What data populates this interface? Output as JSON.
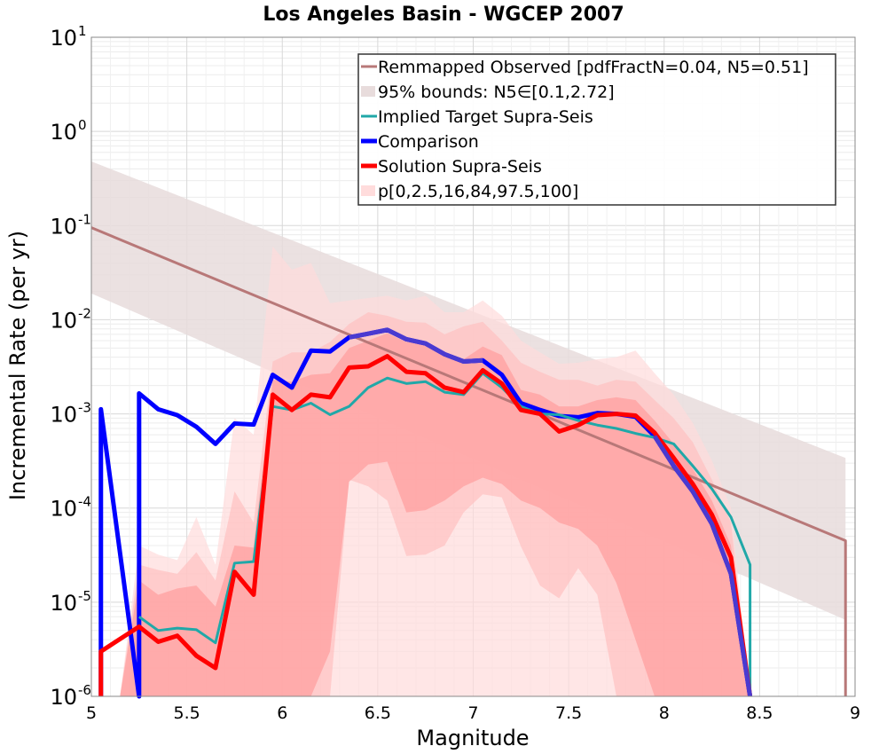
{
  "chart_data": {
    "type": "line",
    "title": "Los Angeles Basin - WGCEP 2007",
    "xlabel": "Magnitude",
    "ylabel": "Incremental Rate (per yr)",
    "xlim": [
      5,
      9
    ],
    "ylim": [
      1e-06,
      10
    ],
    "yscale": "log",
    "grid": true,
    "legend_position": "top-right",
    "xticks": [
      "5",
      "5.5",
      "6",
      "6.5",
      "7",
      "7.5",
      "8",
      "8.5",
      "9"
    ],
    "yticks": [
      {
        "base": "10",
        "exp": "1"
      },
      {
        "base": "10",
        "exp": "0"
      },
      {
        "base": "10",
        "exp": "-1"
      },
      {
        "base": "10",
        "exp": "-2"
      },
      {
        "base": "10",
        "exp": "-3"
      },
      {
        "base": "10",
        "exp": "-4"
      },
      {
        "base": "10",
        "exp": "-5"
      },
      {
        "base": "10",
        "exp": "-6"
      }
    ],
    "colors": {
      "observed": "#b87878",
      "bounds": "#e8dcdc",
      "implied": "#20a8a8",
      "comparison": "#0000ff",
      "solution": "#ff0000",
      "pctl_outer": "#ffdcdc",
      "pctl_mid": "#ffc0c0",
      "pctl_inner": "#ff9c9c",
      "overlap": "#4a3ad0",
      "overlap_green": "#4a7878"
    },
    "legend": [
      {
        "label": "Remmapped Observed [pdfFractN=0.04, N5=0.51]",
        "kind": "line",
        "color": "#b87878",
        "width": 3
      },
      {
        "label": "95% bounds: N5∈[0.1,2.72]",
        "kind": "patch",
        "color": "#e8dcdc"
      },
      {
        "label": "Implied Target Supra-Seis",
        "kind": "line",
        "color": "#20a8a8",
        "width": 3
      },
      {
        "label": "Comparison",
        "kind": "line",
        "color": "#0000ff",
        "width": 5
      },
      {
        "label": "Solution Supra-Seis",
        "kind": "line",
        "color": "#ff0000",
        "width": 5
      },
      {
        "label": "p[0,2.5,16,84,97.5,100]",
        "kind": "patch",
        "color": "#ffdcdc"
      }
    ],
    "remapped_observed": {
      "x": [
        5.0,
        8.95,
        8.95
      ],
      "y": [
        0.095,
        4.5e-05,
        1e-06
      ]
    },
    "bounds_95": {
      "x": [
        5.0,
        8.95
      ],
      "upper": [
        0.48,
        0.00034
      ],
      "lower": [
        0.019,
        6.5e-06
      ]
    },
    "comparison": {
      "x": [
        5.05,
        5.05,
        5.25,
        5.25,
        5.35,
        5.45,
        5.55,
        5.65,
        5.75,
        5.85,
        5.95,
        6.05,
        6.15,
        6.25,
        6.35,
        6.45,
        6.55,
        6.65,
        6.75,
        6.85,
        6.95,
        7.05,
        7.15,
        7.25,
        7.35,
        7.45,
        7.55,
        7.65,
        7.75,
        7.85,
        7.95,
        8.05,
        8.15,
        8.25,
        8.35,
        8.45
      ],
      "y": [
        1e-06,
        0.00112,
        1e-06,
        0.00165,
        0.00112,
        0.00097,
        0.00073,
        0.00048,
        0.00079,
        0.00077,
        0.0026,
        0.0019,
        0.0047,
        0.0046,
        0.0065,
        0.0071,
        0.0078,
        0.0062,
        0.0056,
        0.0043,
        0.0036,
        0.0037,
        0.0026,
        0.0013,
        0.0011,
        0.00095,
        0.00092,
        0.00102,
        0.001,
        0.00093,
        0.00058,
        0.00028,
        0.00015,
        6.8e-05,
        2e-05,
        1e-06
      ]
    },
    "solution": {
      "x": [
        5.05,
        5.05,
        5.25,
        5.35,
        5.45,
        5.55,
        5.65,
        5.75,
        5.85,
        5.95,
        6.05,
        6.15,
        6.25,
        6.35,
        6.45,
        6.55,
        6.65,
        6.75,
        6.85,
        6.95,
        7.05,
        7.15,
        7.25,
        7.35,
        7.45,
        7.55,
        7.65,
        7.75,
        7.85,
        7.95,
        8.05,
        8.15,
        8.25,
        8.35,
        8.45
      ],
      "y": [
        1e-06,
        3e-06,
        5.5e-06,
        3.8e-06,
        4.4e-06,
        2.7e-06,
        2e-06,
        2.1e-05,
        1.2e-05,
        0.0016,
        0.0011,
        0.0016,
        0.0015,
        0.0031,
        0.0032,
        0.0041,
        0.0028,
        0.0027,
        0.0019,
        0.0017,
        0.0029,
        0.0021,
        0.0011,
        0.001,
        0.00065,
        0.00076,
        0.00097,
        0.001,
        0.00096,
        0.00063,
        0.00034,
        0.00018,
        8.5e-05,
        3e-05,
        1e-06
      ]
    },
    "implied_target": {
      "x": [
        5.25,
        5.35,
        5.45,
        5.55,
        5.65,
        5.75,
        5.85,
        5.95,
        6.05,
        6.15,
        6.25,
        6.35,
        6.45,
        6.55,
        6.65,
        6.75,
        6.85,
        6.95,
        7.05,
        7.15,
        7.25,
        7.35,
        7.45,
        7.55,
        7.65,
        7.75,
        7.85,
        7.95,
        8.05,
        8.15,
        8.25,
        8.35,
        8.45,
        8.45
      ],
      "y": [
        7e-06,
        5e-06,
        5.3e-06,
        5.1e-06,
        3.7e-06,
        2.6e-05,
        2.7e-05,
        0.0012,
        0.0011,
        0.0013,
        0.00098,
        0.0012,
        0.0019,
        0.0024,
        0.0021,
        0.0022,
        0.0017,
        0.0016,
        0.0027,
        0.0019,
        0.0012,
        0.001,
        0.00098,
        0.00085,
        0.00076,
        0.0007,
        0.00062,
        0.00056,
        0.00048,
        0.00028,
        0.00016,
        8e-05,
        2.5e-05,
        1e-06
      ]
    },
    "percentiles": {
      "x": [
        5.05,
        5.15,
        5.25,
        5.35,
        5.45,
        5.55,
        5.65,
        5.75,
        5.85,
        5.95,
        6.05,
        6.15,
        6.25,
        6.35,
        6.45,
        6.55,
        6.65,
        6.75,
        6.85,
        6.95,
        7.05,
        7.15,
        7.25,
        7.35,
        7.45,
        7.55,
        7.65,
        7.75,
        7.85,
        7.95,
        8.05,
        8.15,
        8.25,
        8.35,
        8.45
      ],
      "p0": [
        1e-06,
        1e-06,
        1e-06,
        1e-06,
        1e-06,
        1e-06,
        1e-06,
        1e-06,
        1e-06,
        1e-06,
        1e-06,
        1e-06,
        1e-06,
        1e-06,
        1e-06,
        1e-06,
        1e-06,
        1e-06,
        1e-06,
        1e-06,
        1e-06,
        1e-06,
        1e-06,
        1e-06,
        1e-06,
        1e-06,
        1e-06,
        1e-06,
        1e-06,
        1e-06,
        1e-06,
        1e-06,
        1e-06,
        1e-06,
        1e-06
      ],
      "p2_5": [
        1e-06,
        1e-06,
        1e-06,
        1e-06,
        1e-06,
        1e-06,
        1e-06,
        1e-06,
        1e-06,
        1e-06,
        1e-06,
        1e-06,
        1e-06,
        0.0002,
        0.00017,
        0.00012,
        3.1e-05,
        3.2e-05,
        4e-05,
        9e-05,
        0.00014,
        0.00013,
        3.9e-05,
        1.5e-05,
        1.1e-05,
        2.3e-05,
        1.2e-05,
        1e-06,
        1e-06,
        1e-06,
        1e-06,
        1e-06,
        1e-06,
        1e-06,
        1e-06
      ],
      "p16": [
        1e-06,
        1e-06,
        1e-06,
        1e-06,
        1e-06,
        1e-06,
        1e-06,
        1e-06,
        1e-06,
        1e-06,
        1e-06,
        1e-06,
        3e-06,
        0.00019,
        0.00029,
        0.00031,
        9e-05,
        9.5e-05,
        0.00012,
        0.00017,
        0.00021,
        0.00018,
        0.00012,
        0.0001,
        7e-05,
        6e-05,
        4e-05,
        1.6e-05,
        4e-06,
        1e-06,
        1e-06,
        1e-06,
        1e-06,
        1e-06,
        1e-06
      ],
      "p84": [
        1e-06,
        1e-06,
        1.7e-05,
        1.2e-05,
        1.4e-05,
        1.5e-05,
        9e-06,
        4e-05,
        3.8e-05,
        0.0023,
        0.0022,
        0.0026,
        0.0027,
        0.005,
        0.006,
        0.0072,
        0.0058,
        0.0055,
        0.0041,
        0.0038,
        0.0052,
        0.0042,
        0.0018,
        0.0016,
        0.0012,
        0.0012,
        0.0014,
        0.0015,
        0.0014,
        0.00085,
        0.00048,
        0.00026,
        0.00012,
        4e-05,
        1e-06
      ],
      "p97_5": [
        1e-06,
        1e-06,
        2.5e-05,
        2.2e-05,
        2e-05,
        3.4e-05,
        1.7e-05,
        0.00015,
        7e-05,
        0.0036,
        0.0045,
        0.0045,
        0.0058,
        0.009,
        0.012,
        0.011,
        0.0095,
        0.0093,
        0.007,
        0.0085,
        0.0095,
        0.006,
        0.0035,
        0.0028,
        0.0023,
        0.0023,
        0.002,
        0.0023,
        0.0022,
        0.0014,
        0.0009,
        0.0005,
        0.0002,
        7e-05,
        1e-06
      ],
      "p100": [
        1e-06,
        1e-06,
        4e-05,
        3.2e-05,
        2.8e-05,
        8e-05,
        2.5e-05,
        0.0009,
        0.0006,
        0.06,
        0.034,
        0.04,
        0.015,
        0.016,
        0.017,
        0.018,
        0.016,
        0.018,
        0.012,
        0.012,
        0.016,
        0.011,
        0.006,
        0.0045,
        0.0034,
        0.0035,
        0.0038,
        0.004,
        0.0047,
        0.0027,
        0.0016,
        0.0008,
        0.00032,
        0.0001,
        1e-06
      ]
    }
  }
}
